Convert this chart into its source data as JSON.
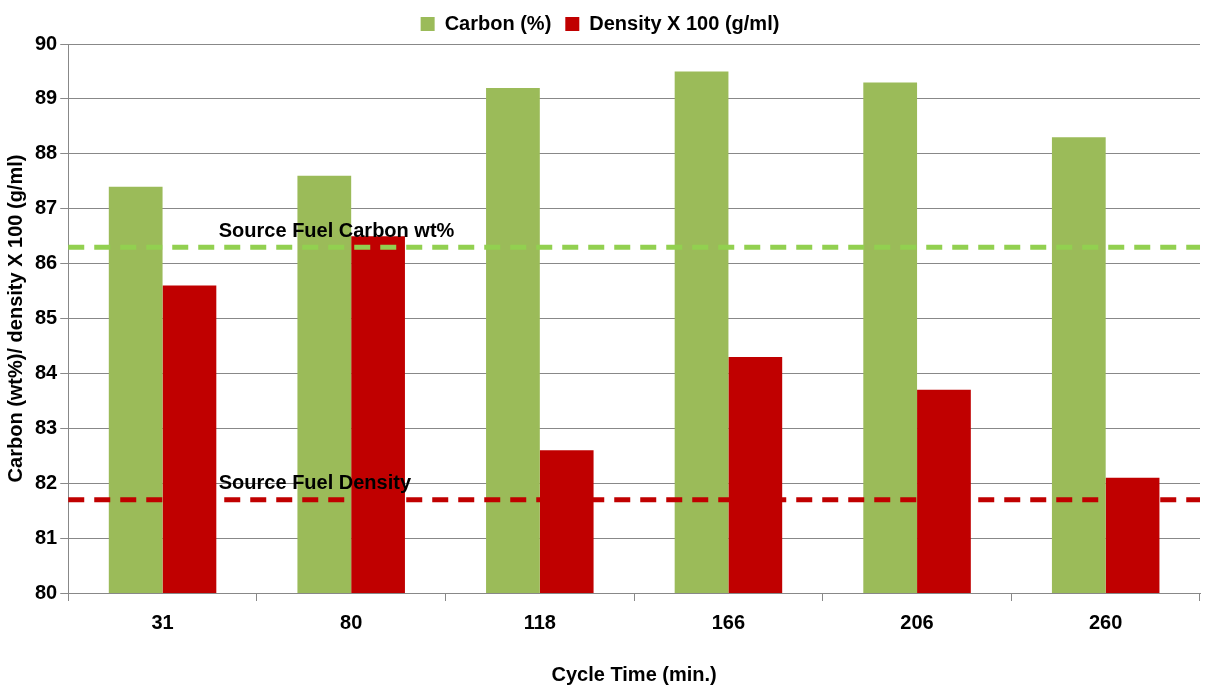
{
  "chart_data": {
    "type": "bar",
    "categories": [
      "31",
      "80",
      "118",
      "166",
      "206",
      "260"
    ],
    "series": [
      {
        "name": "Carbon (%)",
        "color": "#9bbb59",
        "values": [
          87.4,
          87.6,
          89.2,
          89.5,
          89.3,
          88.3
        ]
      },
      {
        "name": "Density X 100 (g/ml)",
        "color": "#c00000",
        "values": [
          85.6,
          86.5,
          82.6,
          84.3,
          83.7,
          82.1
        ]
      }
    ],
    "xlabel": "Cycle Time (min.)",
    "ylabel": "Carbon (wt%)/ density X 100 (g/ml)",
    "ylim": [
      80,
      90
    ],
    "yticks": [
      80,
      81,
      82,
      83,
      84,
      85,
      86,
      87,
      88,
      89,
      90
    ],
    "ref_lines": [
      {
        "axis": "y",
        "value": 86.3,
        "label": "Source Fuel Carbon wt%",
        "color": "#92d050",
        "line_style": "dashed"
      },
      {
        "axis": "y",
        "value": 81.7,
        "label": "Source Fuel Density",
        "color": "#c00000",
        "line_style": "dashed"
      }
    ],
    "grid": "y",
    "legend": "top"
  }
}
